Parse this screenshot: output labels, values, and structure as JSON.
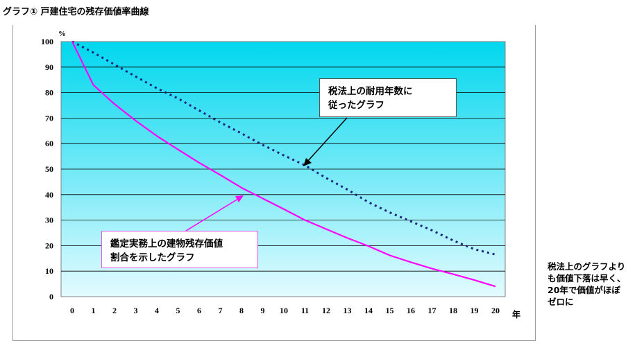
{
  "title": "グラフ① 戸建住宅の残存価値率曲線",
  "side_note": {
    "lines": [
      "税法上のグラフより",
      "も価値下落は早く、",
      "20年で価値がほぼ",
      "ゼロに"
    ]
  },
  "callouts": {
    "tax": {
      "lines": [
        "税法上の耐用年数に",
        "従ったグラフ"
      ]
    },
    "appraisal": {
      "lines": [
        "鑑定実務上の建物残存価値",
        "割合を示したグラフ"
      ]
    }
  },
  "colors": {
    "plot_top": "#00d7ee",
    "plot_bottom": "#e3fbff",
    "tax_series": "#1a237e",
    "appraisal_series": "#ff00ff",
    "gridline": "#000000"
  },
  "chart_data": {
    "type": "line",
    "ylabel": "%",
    "xlabel": "年",
    "xlim": [
      0,
      20
    ],
    "ylim": [
      0,
      100
    ],
    "grid": true,
    "x": [
      0,
      1,
      2,
      3,
      4,
      5,
      6,
      7,
      8,
      9,
      10,
      11,
      12,
      13,
      14,
      15,
      16,
      17,
      18,
      19,
      20
    ],
    "x_ticks": [
      "0",
      "1",
      "2",
      "3",
      "4",
      "5",
      "6",
      "7",
      "8",
      "9",
      "10",
      "11",
      "12",
      "13",
      "14",
      "15",
      "16",
      "17",
      "18",
      "19",
      "20"
    ],
    "y_ticks": [
      "0",
      "10",
      "20",
      "30",
      "40",
      "50",
      "60",
      "70",
      "80",
      "90",
      "100"
    ],
    "series": [
      {
        "name": "税法上の耐用年数に従ったグラフ",
        "style": "dotted",
        "values": [
          100,
          95.7,
          91,
          86.3,
          81.7,
          77.7,
          73,
          68.3,
          64,
          59.5,
          55.4,
          51.5,
          46.5,
          42,
          37,
          33,
          29.5,
          26,
          22,
          18.6,
          16.5
        ]
      },
      {
        "name": "鑑定実務上の建物残存価値割合を示したグラフ",
        "style": "solid",
        "values": [
          100,
          83,
          75.5,
          69,
          63,
          57.7,
          52.5,
          47.7,
          42.7,
          38.5,
          34.3,
          30,
          26.5,
          23,
          19.8,
          16.2,
          13.5,
          11,
          8.8,
          6.5,
          4
        ]
      }
    ]
  }
}
